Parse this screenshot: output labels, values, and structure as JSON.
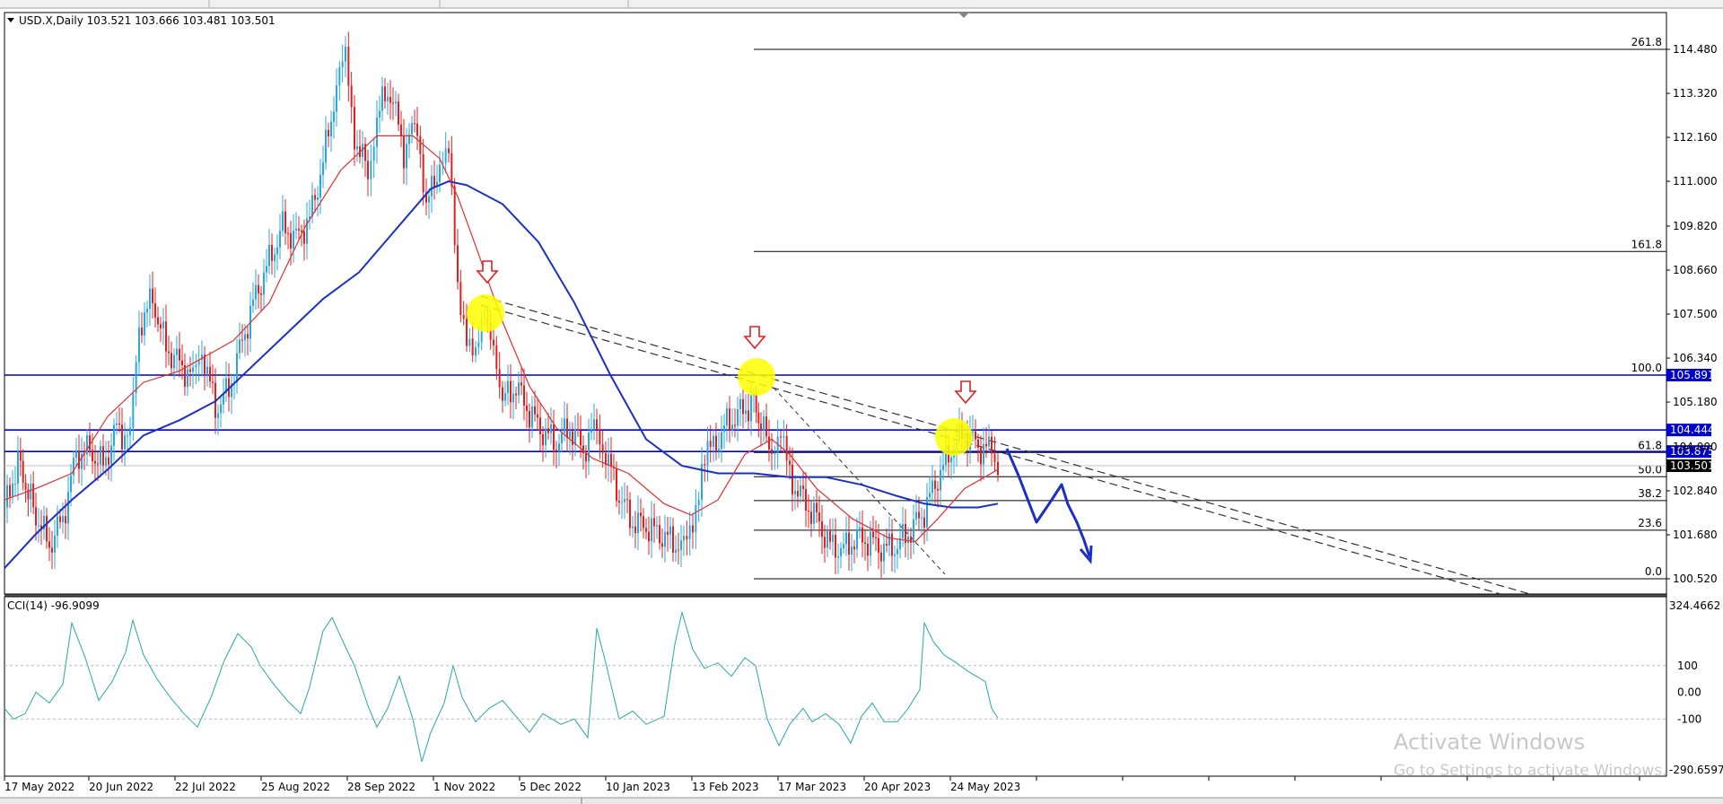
{
  "main_chart": {
    "symbol_info": "USD.X,Daily  103.521 103.666 103.481 103.501",
    "price_labels": [
      "114.480",
      "113.320",
      "112.160",
      "111.000",
      "109.820",
      "108.660",
      "107.500",
      "106.340",
      "105.180",
      "104.000",
      "102.840",
      "101.680",
      "100.520"
    ],
    "price_label_values": [
      114.48,
      113.32,
      112.16,
      111.0,
      109.82,
      108.66,
      107.5,
      106.34,
      105.18,
      104.0,
      102.84,
      101.68,
      100.52
    ],
    "hlines": [
      {
        "label": "105.891",
        "value": 105.891,
        "color": "#0000cc"
      },
      {
        "label": "104.444",
        "value": 104.444,
        "color": "#0000cc"
      },
      {
        "label": "103.875",
        "value": 103.875,
        "color": "#0000cc"
      }
    ],
    "current_price": {
      "label": "103.501",
      "value": 103.501
    },
    "fibonacci": [
      {
        "label": "261.8",
        "value": 114.48
      },
      {
        "label": "161.8",
        "value": 109.15
      },
      {
        "label": "100.0",
        "value": 105.891
      },
      {
        "label": "61.8",
        "value": 103.85
      },
      {
        "label": "50.0",
        "value": 103.21
      },
      {
        "label": "38.2",
        "value": 102.58
      },
      {
        "label": "23.6",
        "value": 101.8
      },
      {
        "label": "0.0",
        "value": 100.52
      }
    ],
    "date_labels": [
      "17 May 2022",
      "20 Jun 2022",
      "22 Jul 2022",
      "25 Aug 2022",
      "28 Sep 2022",
      "1 Nov 2022",
      "5 Dec 2022",
      "10 Jan 2023",
      "13 Feb 2023",
      "17 Mar 2023",
      "20 Apr 2023",
      "24 May 2023"
    ],
    "colors": {
      "bull": "#29a8e0",
      "bear": "#e02020",
      "ma_fast": "#e03030",
      "ma_slow": "#1a2fc8",
      "trendline": "#333333",
      "highlight": "#ffff00",
      "arrow": "#e02020",
      "projection": "#1a2fc8"
    }
  },
  "cci_panel": {
    "title": "CCI(14) -96.9099",
    "labels": [
      "324.4662",
      "100",
      "0.00",
      "-100",
      "-290.6597"
    ],
    "label_values": [
      324.4662,
      100,
      0,
      -100,
      -290.6597
    ],
    "color": "#2aa7a0"
  },
  "watermark": {
    "line1": "Activate Windows",
    "line2": "Go to Settings to activate Windows."
  }
}
